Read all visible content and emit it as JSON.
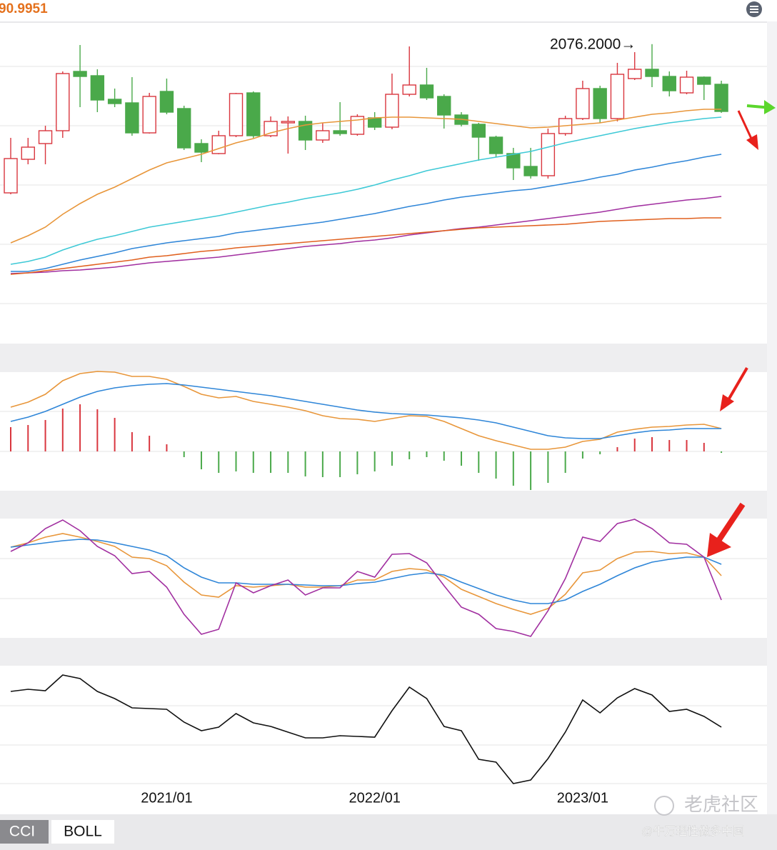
{
  "chart_data": [
    {
      "type": "candlestick",
      "top_label": "90.9951",
      "annotation": "2076.2000→",
      "categories": [
        null,
        null,
        null,
        null,
        null,
        null,
        null,
        null,
        null,
        "2021/01",
        null,
        null,
        null,
        null,
        null,
        null,
        null,
        null,
        null,
        null,
        null,
        "2022/01",
        null,
        null,
        null,
        null,
        null,
        null,
        null,
        null,
        null,
        null,
        null,
        "2023/01",
        null,
        null,
        null,
        null,
        null,
        null,
        null,
        null
      ],
      "open": [
        1868,
        1915,
        1937,
        1955,
        2038,
        2032,
        1999,
        1994,
        1952,
        2010,
        1986,
        1937,
        1923,
        1948,
        2008,
        1948,
        1966,
        1968,
        1942,
        1955,
        1950,
        1973,
        1960,
        2006,
        2019,
        2003,
        1977,
        1964,
        1946,
        1923,
        1905,
        1892,
        1951,
        1972,
        2014,
        1972,
        2028,
        2041,
        2031,
        2008,
        2030,
        2020
      ],
      "high": [
        1945,
        1945,
        1962,
        2038,
        2075,
        2041,
        2014,
        2030,
        2008,
        2028,
        1990,
        1943,
        1955,
        2008,
        2010,
        1975,
        1975,
        1976,
        1966,
        1995,
        1978,
        1981,
        2035,
        2073,
        2043,
        2006,
        1981,
        1966,
        1948,
        1931,
        1931,
        1958,
        1976,
        2025,
        2018,
        2050,
        2065,
        2076.2,
        2038,
        2039,
        2031,
        2025
      ],
      "low": [
        1866,
        1908,
        1908,
        1945,
        1988,
        1981,
        1988,
        1948,
        1951,
        1978,
        1928,
        1911,
        1922,
        1946,
        1945,
        1946,
        1923,
        1928,
        1938,
        1948,
        1948,
        1956,
        1957,
        2003,
        1998,
        1958,
        1961,
        1913,
        1918,
        1886,
        1888,
        1888,
        1948,
        1970,
        1966,
        1968,
        2026,
        2016,
        2003,
        2006,
        1998,
        1980
      ],
      "close": [
        1916,
        1932,
        1955,
        2035,
        2031,
        1998,
        1993,
        1952,
        2003,
        1981,
        1931,
        1925,
        1948,
        2007,
        1948,
        1968,
        1968,
        1942,
        1955,
        1951,
        1975,
        1960,
        2006,
        2019,
        2001,
        1977,
        1964,
        1946,
        1923,
        1903,
        1892,
        1951,
        1972,
        2014,
        1972,
        2034,
        2041,
        2031,
        2011,
        2030,
        2020,
        1982
      ],
      "up_color": "#d9363e",
      "down_color": "#4aa94a",
      "ylim": [
        1658,
        2108
      ],
      "series": [
        {
          "color": "#e8963a",
          "values": [
            1798,
            1808,
            1820,
            1838,
            1853,
            1866,
            1876,
            1888,
            1900,
            1910,
            1916,
            1922,
            1930,
            1938,
            1944,
            1952,
            1958,
            1963,
            1966,
            1968,
            1970,
            1973,
            1974,
            1974,
            1973,
            1972,
            1971,
            1968,
            1965,
            1962,
            1959,
            1960,
            1962,
            1964,
            1966,
            1970,
            1974,
            1978,
            1980,
            1983,
            1985,
            1985
          ]
        },
        {
          "color": "#3ec9d6",
          "values": [
            1768,
            1772,
            1778,
            1788,
            1796,
            1803,
            1808,
            1814,
            1820,
            1824,
            1828,
            1832,
            1836,
            1841,
            1846,
            1851,
            1855,
            1860,
            1864,
            1868,
            1873,
            1879,
            1886,
            1892,
            1899,
            1904,
            1909,
            1914,
            1918,
            1922,
            1926,
            1932,
            1938,
            1943,
            1948,
            1953,
            1958,
            1962,
            1966,
            1969,
            1972,
            1974
          ]
        },
        {
          "color": "#2f86d8",
          "values": [
            1758,
            1758,
            1762,
            1768,
            1774,
            1779,
            1784,
            1790,
            1794,
            1798,
            1801,
            1804,
            1807,
            1812,
            1815,
            1818,
            1821,
            1824,
            1827,
            1831,
            1835,
            1839,
            1844,
            1849,
            1853,
            1858,
            1862,
            1865,
            1868,
            1871,
            1873,
            1877,
            1881,
            1885,
            1890,
            1894,
            1900,
            1904,
            1909,
            1913,
            1918,
            1922
          ]
        },
        {
          "color": "#a12fa0",
          "values": [
            1755,
            1756,
            1757,
            1759,
            1760,
            1762,
            1764,
            1767,
            1770,
            1772,
            1774,
            1776,
            1778,
            1781,
            1784,
            1787,
            1790,
            1793,
            1795,
            1797,
            1800,
            1802,
            1805,
            1809,
            1812,
            1815,
            1818,
            1820,
            1823,
            1826,
            1829,
            1832,
            1835,
            1838,
            1841,
            1845,
            1849,
            1852,
            1855,
            1858,
            1860,
            1863
          ]
        },
        {
          "color": "#e0601e",
          "values": [
            1754,
            1756,
            1759,
            1762,
            1765,
            1768,
            1771,
            1774,
            1778,
            1780,
            1783,
            1786,
            1788,
            1791,
            1793,
            1795,
            1797,
            1799,
            1801,
            1803,
            1805,
            1807,
            1809,
            1811,
            1813,
            1815,
            1817,
            1819,
            1820,
            1821,
            1822,
            1823,
            1824,
            1826,
            1828,
            1829,
            1830,
            1831,
            1832,
            1832,
            1833,
            1833
          ]
        }
      ]
    },
    {
      "type": "macd",
      "ylim": [
        -56,
        110
      ],
      "bars": {
        "up_color": "#d9363e",
        "down_color": "#4aa94a",
        "values": [
          34,
          37,
          44,
          60,
          66,
          59,
          47,
          27,
          22,
          10,
          -8,
          -25,
          -30,
          -28,
          -30,
          -30,
          -30,
          -35,
          -36,
          -36,
          -32,
          -28,
          -20,
          -11,
          -8,
          -13,
          -20,
          -30,
          -38,
          -48,
          -54,
          -44,
          -30,
          -10,
          -4,
          6,
          18,
          20,
          16,
          16,
          12,
          -2
        ]
      },
      "series": [
        {
          "color": "#e8963a",
          "values": [
            62,
            69,
            80,
            99,
            109,
            112,
            111,
            105,
            105,
            101,
            91,
            80,
            75,
            77,
            70,
            66,
            62,
            57,
            50,
            46,
            45,
            42,
            46,
            50,
            49,
            42,
            32,
            22,
            15,
            9,
            3,
            3,
            6,
            14,
            17,
            27,
            31,
            34,
            35,
            37,
            38,
            32
          ]
        },
        {
          "color": "#2f86d8",
          "values": [
            42,
            48,
            56,
            66,
            76,
            84,
            89,
            92,
            94,
            95,
            93,
            90,
            87,
            84,
            81,
            78,
            74,
            70,
            66,
            62,
            58,
            55,
            53,
            52,
            51,
            49,
            47,
            44,
            40,
            34,
            28,
            22,
            19,
            18,
            18,
            22,
            26,
            29,
            30,
            32,
            32,
            32
          ]
        }
      ]
    },
    {
      "type": "line",
      "ylim": [
        -2,
        164
      ],
      "series": [
        {
          "color": "#e8963a",
          "values": [
            124,
            130,
            138,
            143,
            138,
            132,
            125,
            110,
            108,
            98,
            75,
            57,
            54,
            70,
            68,
            70,
            72,
            68,
            68,
            70,
            78,
            78,
            90,
            94,
            92,
            82,
            65,
            55,
            45,
            37,
            30,
            38,
            58,
            88,
            92,
            108,
            117,
            118,
            115,
            116,
            110,
            84
          ]
        },
        {
          "color": "#2f86d8",
          "values": [
            124,
            127,
            130,
            133,
            135,
            134,
            130,
            125,
            120,
            112,
            95,
            82,
            74,
            74,
            72,
            72,
            72,
            71,
            70,
            70,
            73,
            75,
            80,
            85,
            88,
            85,
            75,
            66,
            57,
            50,
            45,
            45,
            50,
            62,
            72,
            84,
            95,
            103,
            107,
            110,
            110,
            100
          ]
        },
        {
          "color": "#a12fa0",
          "values": [
            118,
            130,
            150,
            162,
            147,
            125,
            112,
            87,
            90,
            68,
            30,
            2,
            9,
            74,
            60,
            70,
            78,
            57,
            67,
            67,
            90,
            82,
            114,
            115,
            102,
            70,
            40,
            30,
            10,
            6,
            -1,
            35,
            80,
            138,
            132,
            157,
            163,
            150,
            130,
            128,
            110,
            50
          ]
        }
      ]
    },
    {
      "type": "line",
      "ylim": [
        -97,
        68
      ],
      "series": [
        {
          "color": "#111111",
          "values": [
            32,
            35,
            33,
            55,
            50,
            32,
            22,
            9,
            8,
            7,
            -11,
            -23,
            -18,
            1,
            -12,
            -17,
            -25,
            -33,
            -33,
            -30,
            -31,
            -32,
            5,
            38,
            22,
            -17,
            -23,
            -63,
            -67,
            -97,
            -92,
            -62,
            -25,
            20,
            2,
            23,
            36,
            27,
            4,
            7,
            -3,
            -18
          ]
        }
      ]
    }
  ],
  "tabs": [
    "CCI",
    "BOLL"
  ],
  "watermark": {
    "brand": "老虎社区",
    "author": "@牛万理性做多中国"
  }
}
